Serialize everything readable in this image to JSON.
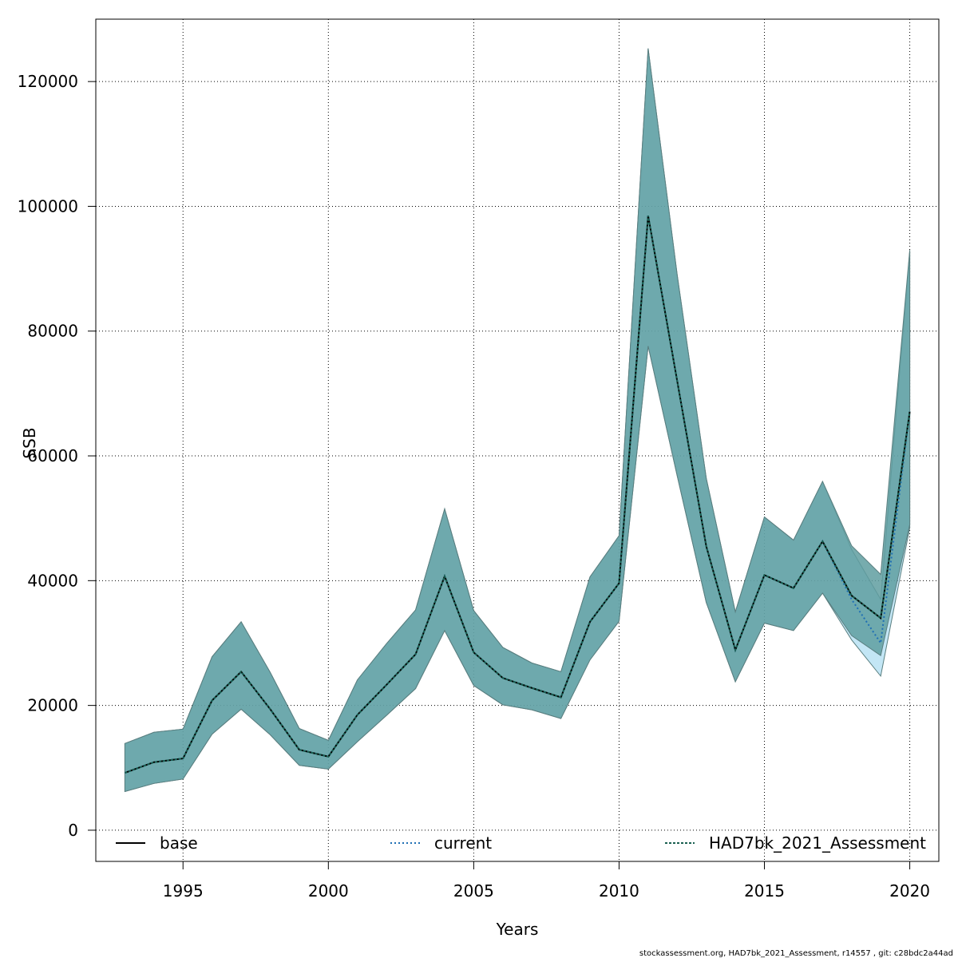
{
  "chart_data": {
    "type": "line",
    "title": "",
    "xlabel": "Years",
    "ylabel": "SSB",
    "xlim": [
      1992,
      2021
    ],
    "ylim": [
      -5000,
      130000
    ],
    "x_ticks": [
      1995,
      2000,
      2005,
      2010,
      2015,
      2020
    ],
    "y_ticks": [
      0,
      20000,
      40000,
      60000,
      80000,
      100000,
      120000
    ],
    "x_tick_labels": [
      "1995",
      "2000",
      "2005",
      "2010",
      "2015",
      "2020"
    ],
    "y_tick_labels": [
      "0",
      "20000",
      "40000",
      "60000",
      "80000",
      "100000",
      "120000"
    ],
    "grid": true,
    "legend_position": "bottom",
    "x": [
      1993,
      1994,
      1995,
      1996,
      1997,
      1998,
      1999,
      2000,
      2001,
      2002,
      2003,
      2004,
      2005,
      2006,
      2007,
      2008,
      2009,
      2010,
      2011,
      2012,
      2013,
      2014,
      2015,
      2016,
      2017,
      2018,
      2019,
      2020
    ],
    "series": [
      {
        "name": "base",
        "style": "solid",
        "color": "#000000",
        "values": [
          9200,
          10900,
          11500,
          20800,
          25400,
          19400,
          12900,
          11800,
          18500,
          23300,
          28200,
          40700,
          28500,
          24400,
          22800,
          21300,
          33400,
          39600,
          98500,
          72000,
          45500,
          28900,
          40900,
          38800,
          46300,
          37600,
          34000,
          67100
        ]
      },
      {
        "name": "current",
        "style": "dotted",
        "color": "#1f6fb4",
        "fill": "#87ceeb",
        "values": [
          9200,
          10900,
          11500,
          20800,
          25400,
          19400,
          12900,
          11800,
          18500,
          23300,
          28200,
          40700,
          28500,
          24400,
          22800,
          21300,
          33400,
          39600,
          98500,
          72000,
          45500,
          28900,
          40900,
          38800,
          46300,
          37000,
          30000,
          67100
        ],
        "lower": [
          6200,
          7500,
          8200,
          15400,
          19400,
          15300,
          10400,
          9800,
          14200,
          18400,
          22700,
          32000,
          23200,
          20100,
          19300,
          17900,
          27300,
          33500,
          77600,
          56800,
          36500,
          23800,
          33200,
          32000,
          38000,
          30500,
          24700,
          48500
        ],
        "upper": [
          13900,
          15700,
          16200,
          27800,
          33400,
          25300,
          16300,
          14400,
          24100,
          29900,
          35300,
          51500,
          35200,
          29300,
          26800,
          25400,
          40600,
          47200,
          125300,
          89000,
          56400,
          35000,
          50200,
          46500,
          55900,
          45000,
          37000,
          92800
        ]
      },
      {
        "name": "HAD7bk_2021_Assessment",
        "style": "dashed",
        "color": "#1a6050",
        "fill": "#5f9ea0",
        "values": [
          9200,
          10900,
          11500,
          20800,
          25400,
          19400,
          12900,
          11800,
          18500,
          23300,
          28200,
          40700,
          28500,
          24400,
          22800,
          21300,
          33400,
          39600,
          98500,
          72000,
          45500,
          28900,
          40900,
          38800,
          46300,
          37600,
          34000,
          67100
        ],
        "lower": [
          6200,
          7500,
          8200,
          15400,
          19400,
          15300,
          10400,
          9800,
          14200,
          18400,
          22700,
          32000,
          23200,
          20100,
          19300,
          17900,
          27300,
          33500,
          77600,
          56800,
          36500,
          23800,
          33200,
          32000,
          38000,
          31200,
          28000,
          49000
        ],
        "upper": [
          13900,
          15700,
          16200,
          27800,
          33400,
          25300,
          16300,
          14400,
          24100,
          29900,
          35300,
          51500,
          35200,
          29300,
          26800,
          25400,
          40600,
          47200,
          125300,
          89000,
          56400,
          35000,
          50200,
          46500,
          55900,
          45600,
          41000,
          93000
        ]
      }
    ]
  },
  "footer_text": "stockassessment.org, HAD7bk_2021_Assessment, r14557 , git: c28bdc2a44ad"
}
